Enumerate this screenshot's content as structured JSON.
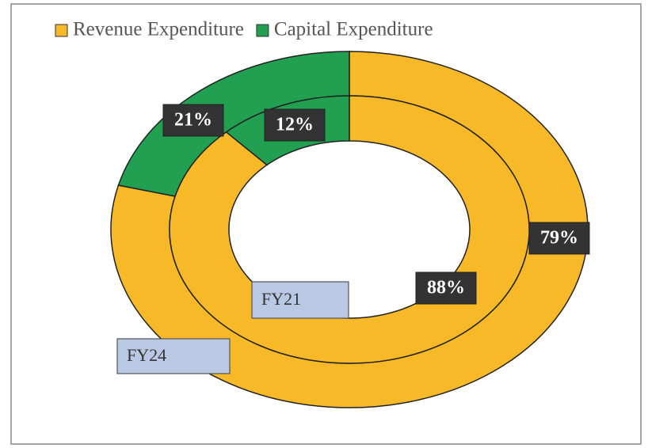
{
  "chart_data": {
    "type": "donut",
    "categories": [
      "FY24",
      "FY21"
    ],
    "series": [
      {
        "name": "Revenue Expenditure",
        "color": "#f7b928",
        "values": [
          79,
          88
        ],
        "value_labels": [
          "79%",
          "88%"
        ]
      },
      {
        "name": "Capital Expenditure",
        "color": "#22a052",
        "values": [
          21,
          12
        ],
        "value_labels": [
          "21%",
          "12%"
        ]
      }
    ],
    "legend": "top"
  }
}
